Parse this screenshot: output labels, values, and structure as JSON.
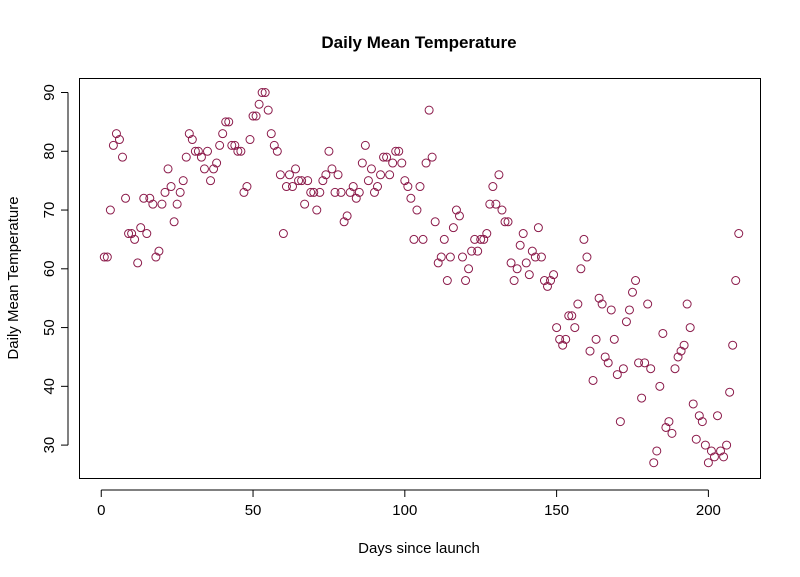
{
  "chart_data": {
    "type": "scatter",
    "title": "Daily Mean Temperature",
    "xlabel": "Days since launch",
    "ylabel": "Daily Mean Temperature",
    "xlim": [
      -7,
      217
    ],
    "ylim": [
      24.4,
      92.3
    ],
    "x_ticks": [
      0,
      50,
      100,
      150,
      200
    ],
    "y_ticks": [
      30,
      40,
      50,
      60,
      70,
      80,
      90
    ],
    "grid": false,
    "marker": "open-circle",
    "color": "#8B1A4A",
    "series": [
      {
        "x": [
          1,
          2,
          3,
          4,
          5,
          6,
          7,
          8,
          9,
          10,
          11,
          12,
          13,
          14,
          15,
          16,
          17,
          18,
          19,
          20,
          21,
          22,
          23,
          24,
          25,
          26,
          27,
          28,
          29,
          30,
          31,
          32,
          33,
          34,
          35,
          36,
          37,
          38,
          39,
          40,
          41,
          42,
          43,
          44,
          45,
          46,
          47,
          48,
          49,
          50,
          51,
          52,
          53,
          54,
          55,
          56,
          57,
          58,
          59,
          60,
          61,
          62,
          63,
          64,
          65,
          66,
          67,
          68,
          69,
          70,
          71,
          72,
          73,
          74,
          75,
          76,
          77,
          78,
          79,
          80,
          81,
          82,
          83,
          84,
          85,
          86,
          87,
          88,
          89,
          90,
          91,
          92,
          93,
          94,
          95,
          96,
          97,
          98,
          99,
          100,
          101,
          102,
          103,
          104,
          105,
          106,
          107,
          108,
          109,
          110,
          111,
          112,
          113,
          114,
          115,
          116,
          117,
          118,
          119,
          120,
          121,
          122,
          123,
          124,
          125,
          126,
          127,
          128,
          129,
          130,
          131,
          132,
          133,
          134,
          135,
          136,
          137,
          138,
          139,
          140,
          141,
          142,
          143,
          144,
          145,
          146,
          147,
          148,
          149,
          150,
          151,
          152,
          153,
          154,
          155,
          156,
          157,
          158,
          159,
          160,
          161,
          162,
          163,
          164,
          165,
          166,
          167,
          168,
          169,
          170,
          171,
          172,
          173,
          174,
          175,
          176,
          177,
          178,
          179,
          180,
          181,
          182,
          183,
          184,
          185,
          186,
          187,
          188,
          189,
          190,
          191,
          192,
          193,
          194,
          195,
          196,
          197,
          198,
          199,
          200,
          201,
          202,
          203,
          204,
          205,
          206,
          207,
          208,
          209,
          210
        ],
        "y": [
          62,
          62,
          70,
          81,
          83,
          82,
          79,
          72,
          66,
          66,
          65,
          61,
          67,
          72,
          66,
          72,
          71,
          62,
          63,
          71,
          73,
          77,
          74,
          68,
          71,
          73,
          75,
          79,
          83,
          82,
          80,
          80,
          79,
          77,
          80,
          75,
          77,
          78,
          81,
          83,
          85,
          85,
          81,
          81,
          80,
          80,
          73,
          74,
          82,
          86,
          86,
          88,
          90,
          90,
          87,
          83,
          81,
          80,
          76,
          66,
          74,
          76,
          74,
          77,
          75,
          75,
          71,
          75,
          73,
          73,
          70,
          73,
          75,
          76,
          80,
          77,
          73,
          76,
          73,
          68,
          69,
          73,
          74,
          72,
          73,
          78,
          81,
          75,
          77,
          73,
          74,
          76,
          79,
          79,
          76,
          78,
          80,
          80,
          78,
          75,
          74,
          72,
          65,
          70,
          74,
          65,
          78,
          87,
          79,
          68,
          61,
          62,
          65,
          58,
          62,
          67,
          70,
          69,
          62,
          58,
          60,
          63,
          65,
          63,
          65,
          65,
          66,
          71,
          74,
          71,
          76,
          70,
          68,
          68,
          61,
          58,
          60,
          64,
          66,
          61,
          59,
          63,
          62,
          67,
          62,
          58,
          57,
          58,
          59,
          50,
          48,
          47,
          48,
          52,
          52,
          50,
          54,
          60,
          65,
          62,
          46,
          41,
          48,
          55,
          54,
          45,
          44,
          53,
          48,
          42,
          34,
          43,
          51,
          53,
          56,
          58,
          44,
          38,
          44,
          54,
          43,
          27,
          29,
          40,
          49,
          33,
          34,
          32,
          43,
          45,
          46,
          47,
          54,
          50,
          37,
          31,
          35,
          34,
          30,
          27,
          29,
          28,
          35,
          29,
          28,
          30,
          39,
          47,
          58,
          66
        ]
      }
    ]
  }
}
